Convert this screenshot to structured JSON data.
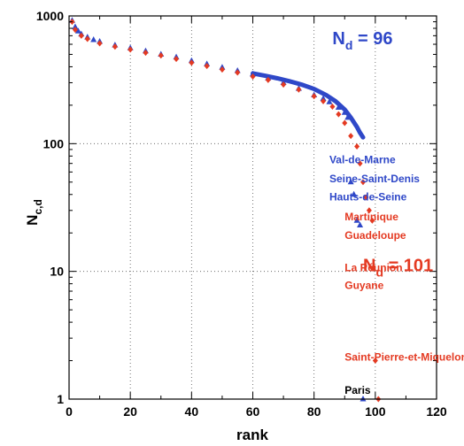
{
  "colors": {
    "blue": "#2f48c8",
    "red": "#e43a22",
    "black": "#000000",
    "grid": "#555555"
  },
  "chart_data": {
    "type": "scatter",
    "xlabel": "rank",
    "ylabel": "N",
    "ylabel_sub": "c,d",
    "xlim": [
      0,
      120
    ],
    "ylim": [
      1,
      1000
    ],
    "yscale": "log",
    "x_ticks": [
      0,
      20,
      40,
      60,
      80,
      100,
      120
    ],
    "x_tick_labels": [
      "0",
      "20",
      "40",
      "60",
      "80",
      "100",
      "120"
    ],
    "y_ticks": [
      1,
      10,
      100,
      1000
    ],
    "y_tick_labels": [
      "1",
      "10",
      "100",
      "1000"
    ],
    "grid": "dotted",
    "series": [
      {
        "color": "#2f48c8",
        "marker": "triangle",
        "x": [
          1,
          2,
          3,
          4,
          6,
          8,
          10,
          15,
          20,
          25,
          30,
          35,
          40,
          45,
          50,
          55,
          60,
          65,
          70,
          75,
          80,
          83,
          85,
          88,
          90,
          91,
          92,
          93,
          94,
          95,
          96
        ],
        "y": [
          920,
          820,
          760,
          720,
          680,
          650,
          630,
          590,
          560,
          530,
          500,
          475,
          445,
          420,
          395,
          372,
          350,
          325,
          300,
          270,
          240,
          225,
          212,
          192,
          175,
          160,
          50,
          40,
          25,
          23,
          1
        ]
      },
      {
        "color": "#2f48c8",
        "marker": "line",
        "x": [
          60,
          64,
          68,
          72,
          76,
          80,
          84,
          87,
          90,
          92,
          94,
          95,
          96
        ],
        "y": [
          355,
          340,
          325,
          308,
          290,
          268,
          240,
          215,
          185,
          160,
          135,
          122,
          112
        ]
      },
      {
        "color": "#e43a22",
        "marker": "diamond",
        "x": [
          1,
          2,
          4,
          6,
          10,
          15,
          20,
          25,
          30,
          35,
          40,
          45,
          50,
          55,
          60,
          65,
          70,
          75,
          80,
          83,
          86,
          88,
          90,
          92,
          94,
          95,
          96,
          97,
          98,
          99,
          100,
          101
        ],
        "y": [
          900,
          780,
          700,
          660,
          610,
          575,
          545,
          515,
          490,
          460,
          430,
          405,
          380,
          360,
          335,
          315,
          290,
          265,
          235,
          215,
          195,
          170,
          145,
          115,
          95,
          70,
          50,
          38,
          30,
          25,
          2,
          1
        ]
      }
    ],
    "annotations": [
      {
        "text": "N",
        "sub": "d",
        "suffix": " = 96",
        "color": "#2f48c8",
        "x": 86,
        "y": 600
      },
      {
        "text": "N",
        "sub": "d",
        "suffix": " = 101",
        "color": "#e43a22",
        "x": 96,
        "y": 10
      },
      {
        "text": "Val-de-Marne",
        "color": "#2f48c8",
        "x": 85,
        "y": 70
      },
      {
        "text": "Seine-Saint-Denis",
        "color": "#2f48c8",
        "x": 85,
        "y": 50
      },
      {
        "text": "Hauts-de-Seine",
        "color": "#2f48c8",
        "x": 85,
        "y": 36
      },
      {
        "text": "Martinique",
        "color": "#e43a22",
        "x": 90,
        "y": 25
      },
      {
        "text": "Guadeloupe",
        "color": "#e43a22",
        "x": 90,
        "y": 18
      },
      {
        "text": "La Réunion",
        "color": "#e43a22",
        "x": 90,
        "y": 10
      },
      {
        "text": "Guyane",
        "color": "#e43a22",
        "x": 90,
        "y": 7.3
      },
      {
        "text": "Saint-Pierre-et-Miquelon",
        "color": "#e43a22",
        "x": 90,
        "y": 2
      },
      {
        "text": "Paris",
        "color": "#000000",
        "x": 90,
        "y": 1.1
      }
    ]
  }
}
